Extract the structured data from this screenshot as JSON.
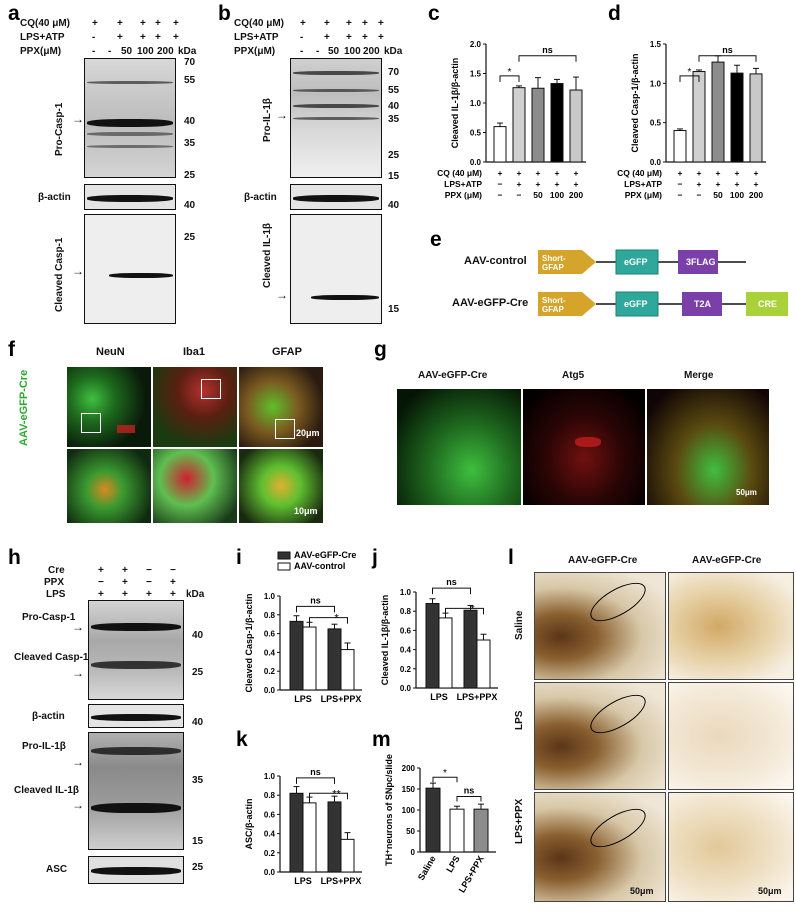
{
  "panels": {
    "a": "a",
    "b": "b",
    "c": "c",
    "d": "d",
    "e": "e",
    "f": "f",
    "g": "g",
    "h": "h",
    "i": "i",
    "j": "j",
    "k": "k",
    "l": "l",
    "m": "m"
  },
  "ab": {
    "cq": "CQ(40 μM)",
    "lpsatp": "LPS+ATP",
    "ppx": "PPX(μM)",
    "kda": "kDa",
    "signs_cq": [
      "+",
      "+",
      "+",
      "+",
      "+"
    ],
    "signs_lps": [
      "-",
      "+",
      "+",
      "+",
      "+"
    ],
    "signs_ppx": [
      "-",
      "-",
      "50",
      "100",
      "200"
    ],
    "a_labels": {
      "top": "Pro-Casp-1",
      "mid": "β-actin",
      "bot": "Cleaved Casp-1"
    },
    "b_labels": {
      "top": "Pro-IL-1β",
      "mid": "β-actin",
      "bot": "Cleaved IL-1β"
    },
    "a_mw": [
      "70",
      "55",
      "40",
      "35",
      "25",
      "40",
      "25"
    ],
    "b_mw": [
      "70",
      "55",
      "40",
      "35",
      "25",
      "15",
      "40",
      "15"
    ]
  },
  "cd_axes": {
    "cq": "CQ (40 μM)",
    "lpsatp": "LPS+ATP",
    "ppx": "PPX (μM)",
    "signs_cq": [
      "+",
      "+",
      "+",
      "+",
      "+"
    ],
    "signs_lps": [
      "−",
      "+",
      "+",
      "+",
      "+"
    ],
    "signs_ppx": [
      "−",
      "−",
      "50",
      "100",
      "200"
    ]
  },
  "e": {
    "rows": [
      {
        "name": "AAV-control",
        "blocks": [
          "Short-GFAP",
          "eGFP",
          "3FLAG"
        ]
      },
      {
        "name": "AAV-eGFP-Cre",
        "blocks": [
          "Short-GFAP",
          "eGFP",
          "T2A",
          "CRE"
        ]
      }
    ],
    "colors": {
      "promoter": "#d4a52a",
      "egfp": "#2ea89a",
      "tag": "#7a3fa8",
      "cre": "#a8d13a"
    }
  },
  "f": {
    "cols": [
      "NeuN",
      "Iba1",
      "GFAP"
    ],
    "side": "AAV-eGFP-Cre",
    "scale1": "20μm",
    "scale2": "10μm"
  },
  "g": {
    "cols": [
      "AAV-eGFP-Cre",
      "Atg5",
      "Merge"
    ],
    "scale": "50μm"
  },
  "h": {
    "cre": "Cre",
    "ppx": "PPX",
    "lps": "LPS",
    "kda": "kDa",
    "signs_cre": [
      "+",
      "+",
      "−",
      "−"
    ],
    "signs_ppx": [
      "−",
      "+",
      "−",
      "+"
    ],
    "signs_lps": [
      "+",
      "+",
      "+",
      "+"
    ],
    "labels": [
      "Pro-Casp-1",
      "Cleaved Casp-1",
      "β-actin",
      "Pro-IL-1β",
      "Cleaved IL-1β",
      "ASC"
    ],
    "mw": [
      "40",
      "25",
      "40",
      "35",
      "15",
      "25"
    ]
  },
  "l": {
    "cols": [
      "AAV-eGFP-Cre",
      "AAV-eGFP-Cre"
    ],
    "rows": [
      "Saline",
      "LPS",
      "LPS+PPX"
    ],
    "scale": "50μm"
  },
  "chart_data": [
    {
      "id": "c",
      "type": "bar",
      "ylabel": "Cleaved IL-1β/β-actin",
      "ylim": [
        0,
        2.0
      ],
      "yticks": [
        "0.0",
        "0.5",
        "1.0",
        "1.5",
        "2.0"
      ],
      "values": [
        0.6,
        1.26,
        1.25,
        1.33,
        1.22
      ],
      "errors": [
        0.06,
        0.03,
        0.18,
        0.07,
        0.22
      ],
      "colors": [
        "#ffffff",
        "#d0d0d0",
        "#8c8c8c",
        "#000000",
        "#c8c8c8"
      ],
      "sig": [
        "*",
        "ns"
      ]
    },
    {
      "id": "d",
      "type": "bar",
      "ylabel": "Cleaved Casp-1/β-actin",
      "ylim": [
        0,
        1.5
      ],
      "yticks": [
        "0.0",
        "0.5",
        "1.0",
        "1.5"
      ],
      "values": [
        0.4,
        1.15,
        1.27,
        1.13,
        1.12
      ],
      "errors": [
        0.02,
        0.02,
        0.08,
        0.1,
        0.07
      ],
      "colors": [
        "#ffffff",
        "#d0d0d0",
        "#8c8c8c",
        "#000000",
        "#c8c8c8"
      ],
      "sig": [
        "*",
        "ns"
      ]
    },
    {
      "id": "i",
      "type": "bar",
      "ylabel": "Cleaved Casp-1/β-actin",
      "ylim": [
        0,
        1.0
      ],
      "yticks": [
        "0.0",
        "0.2",
        "0.4",
        "0.6",
        "0.8",
        "1.0"
      ],
      "categories": [
        "LPS",
        "LPS+PPX"
      ],
      "series": [
        {
          "name": "AAV-eGFP-Cre",
          "values": [
            0.73,
            0.65
          ],
          "errors": [
            0.06,
            0.05
          ],
          "color": "#333333"
        },
        {
          "name": "AAV-control",
          "values": [
            0.67,
            0.43
          ],
          "errors": [
            0.05,
            0.07
          ],
          "color": "#ffffff"
        }
      ],
      "sig": [
        "ns",
        "*"
      ]
    },
    {
      "id": "j",
      "type": "bar",
      "ylabel": "Cleaved IL-1β/β-actin",
      "ylim": [
        0,
        1.0
      ],
      "yticks": [
        "0.0",
        "0.2",
        "0.4",
        "0.6",
        "0.8",
        "1.0"
      ],
      "categories": [
        "LPS",
        "LPS+PPX"
      ],
      "series": [
        {
          "name": "AAV-eGFP-Cre",
          "values": [
            0.88,
            0.81
          ],
          "errors": [
            0.05,
            0.05
          ],
          "color": "#333333"
        },
        {
          "name": "AAV-control",
          "values": [
            0.73,
            0.5
          ],
          "errors": [
            0.05,
            0.06
          ],
          "color": "#ffffff"
        }
      ],
      "sig": [
        "ns",
        "*"
      ]
    },
    {
      "id": "k",
      "type": "bar",
      "ylabel": "ASC/β-actin",
      "ylim": [
        0,
        1.0
      ],
      "yticks": [
        "0.0",
        "0.2",
        "0.4",
        "0.6",
        "0.8",
        "1.0"
      ],
      "categories": [
        "LPS",
        "LPS+PPX"
      ],
      "series": [
        {
          "name": "AAV-eGFP-Cre",
          "values": [
            0.82,
            0.73
          ],
          "errors": [
            0.07,
            0.06
          ],
          "color": "#333333"
        },
        {
          "name": "AAV-control",
          "values": [
            0.72,
            0.34
          ],
          "errors": [
            0.06,
            0.07
          ],
          "color": "#ffffff"
        }
      ],
      "sig": [
        "ns",
        "**"
      ]
    },
    {
      "id": "m",
      "type": "bar",
      "ylabel": "TH⁺neurons of SNpc/slide",
      "ylim": [
        0,
        200
      ],
      "yticks": [
        "0",
        "50",
        "100",
        "150",
        "200"
      ],
      "categories": [
        "Saline",
        "LPS",
        "LPS+PPX"
      ],
      "values": [
        152,
        102,
        102
      ],
      "errors": [
        12,
        7,
        12
      ],
      "colors": [
        "#333333",
        "#ffffff",
        "#8c8c8c"
      ],
      "sig": [
        "*",
        "ns"
      ]
    }
  ]
}
